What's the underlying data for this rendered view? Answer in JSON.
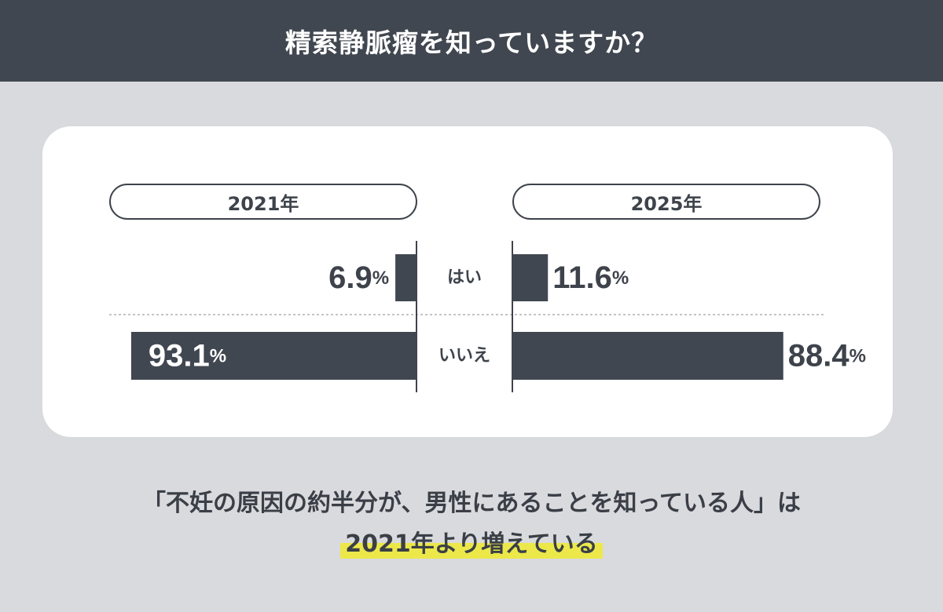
{
  "header": {
    "title": "精索静脈瘤を知っていますか？"
  },
  "colors": {
    "header_bg": "#414750",
    "bar": "#414750",
    "background": "#d9dadd",
    "card": "#ffffff",
    "highlight": "#ece84a"
  },
  "chart_data": {
    "type": "bar",
    "orientation": "horizontal-butterfly",
    "categories": [
      "はい",
      "いいえ"
    ],
    "series": [
      {
        "name": "2021年",
        "values": [
          6.9,
          93.1
        ]
      },
      {
        "name": "2025年",
        "values": [
          11.6,
          88.4
        ]
      }
    ],
    "value_labels": {
      "2021年": [
        "6.9",
        "93.1"
      ],
      "2025年": [
        "11.6",
        "88.4"
      ]
    },
    "unit": "%",
    "xlim": [
      0,
      100
    ]
  },
  "footer": {
    "line1": "「不妊の原因の約半分が、男性にあることを知っている人」は",
    "line2": "2021年より増えている"
  }
}
